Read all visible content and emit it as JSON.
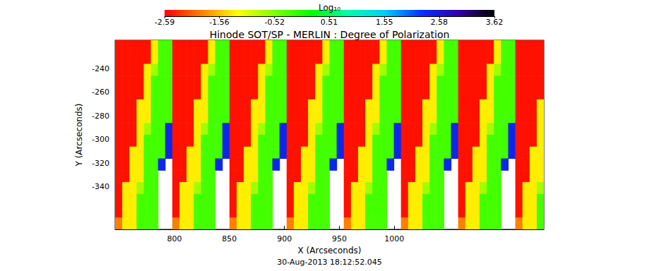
{
  "chart_data": {
    "type": "heatmap",
    "title": "Hinode SOT/SP - MERLIN : Degree of Polarization",
    "subtitle": "30-Aug-2013 18:12:52.045",
    "x_label": "X (Arcseconds)",
    "y_label": "Y (Arcseconds)",
    "xlim": [
      746,
      1136
    ],
    "ylim": [
      -376,
      -216
    ],
    "xticks": [
      800,
      850,
      900,
      950,
      1000
    ],
    "yticks": [
      -340,
      -320,
      -300,
      -280,
      -260,
      -240
    ],
    "grid": false,
    "cells": {
      "x": [
        749.25,
        755.75,
        762.25,
        768.75,
        775.25,
        781.75,
        788.25,
        794.75,
        801.25,
        807.75,
        814.25,
        820.75,
        827.25,
        833.75,
        840.25,
        846.75,
        853.25,
        859.75,
        866.25,
        872.75,
        879.25,
        885.75,
        892.25,
        898.75,
        905.25,
        911.75,
        918.25,
        924.75,
        931.25,
        937.75,
        944.25,
        950.75,
        957.25,
        963.75,
        970.25,
        976.75,
        983.25,
        989.75,
        996.25,
        1002.75,
        1009.25,
        1015.75,
        1022.25,
        1028.75,
        1035.25,
        1041.75,
        1048.25,
        1054.75,
        1061.25,
        1067.75,
        1074.25,
        1080.75,
        1087.25,
        1093.75,
        1100.25,
        1106.75,
        1113.25,
        1119.75,
        1126.25,
        1132.75
      ],
      "y": [
        -221,
        -231,
        -241,
        -251,
        -261,
        -271,
        -281,
        -291,
        -301,
        -311,
        -321,
        -331,
        -341,
        -351,
        -361,
        -371
      ],
      "values": [
        [
          -2.5,
          -2.5,
          -2.5,
          -2.5,
          -2.5,
          -1.3,
          -0.2,
          -0.2,
          -2.5,
          -2.5,
          -2.5,
          -2.5,
          -2.5,
          -1.3,
          -0.2,
          -0.2,
          -2.5,
          -2.5,
          -2.5,
          -2.5,
          -2.5,
          -1.3,
          -0.2,
          -0.2,
          -2.5,
          -2.5,
          -2.5,
          -2.5,
          -2.5,
          -1.3,
          -0.2,
          -0.2,
          -2.5,
          -2.5,
          -2.5,
          -2.5,
          -2.5,
          -1.3,
          -0.2,
          -0.2,
          -2.5,
          -2.5,
          -2.5,
          -2.5,
          -2.5,
          -1.3,
          -0.2,
          -0.2,
          -2.5,
          -2.5,
          -2.5,
          -2.5,
          -2.5,
          -1.3,
          -0.2,
          -0.2,
          -2.5,
          -2.5,
          -2.5,
          -2.5
        ],
        [
          -2.5,
          -2.5,
          -2.5,
          -2.5,
          -2.5,
          -1.3,
          -0.2,
          -0.2,
          -2.5,
          -2.5,
          -2.5,
          -2.5,
          -2.5,
          -1.3,
          -0.2,
          -0.2,
          -2.5,
          -2.5,
          -2.5,
          -2.5,
          -2.5,
          -1.3,
          -0.2,
          -0.2,
          -2.5,
          -2.5,
          -2.5,
          -2.5,
          -2.5,
          -1.3,
          -0.2,
          -0.2,
          -2.5,
          -2.5,
          -2.5,
          -2.5,
          -2.5,
          -1.3,
          -0.2,
          -0.2,
          -2.5,
          -2.5,
          -2.5,
          -2.5,
          -2.5,
          -1.3,
          -0.2,
          -0.2,
          -2.5,
          -2.5,
          -2.5,
          -2.5,
          -2.5,
          -1.3,
          -0.2,
          -0.2,
          -2.5,
          -2.5,
          -2.5,
          -2.5
        ],
        [
          -2.5,
          -2.5,
          -2.5,
          -2.5,
          -1.3,
          -0.7,
          -0.2,
          -0.2,
          -2.5,
          -2.5,
          -2.5,
          -2.5,
          -1.3,
          -0.7,
          -0.2,
          -0.2,
          -2.5,
          -2.5,
          -2.5,
          -2.5,
          -1.3,
          -0.7,
          -0.2,
          -0.2,
          -2.5,
          -2.5,
          -2.5,
          -2.5,
          -1.3,
          -0.7,
          -0.2,
          -0.2,
          -2.5,
          -2.5,
          -2.5,
          -2.5,
          -1.3,
          -0.7,
          -0.2,
          -0.2,
          -2.5,
          -2.5,
          -2.5,
          -2.5,
          -1.3,
          -0.7,
          -0.2,
          -0.2,
          -2.5,
          -2.5,
          -2.5,
          -2.5,
          -1.3,
          -0.7,
          -0.2,
          -0.2,
          -2.5,
          -2.5,
          -2.5,
          -2.5
        ],
        [
          -2.5,
          -2.5,
          -2.5,
          -2.5,
          -1.3,
          -0.2,
          -0.2,
          -0.2,
          -2.5,
          -2.5,
          -2.5,
          -2.5,
          -1.3,
          -0.2,
          -0.2,
          -0.2,
          -2.5,
          -2.5,
          -2.5,
          -2.5,
          -1.3,
          -0.2,
          -0.2,
          -0.2,
          -2.5,
          -2.5,
          -2.5,
          -2.5,
          -1.3,
          -0.2,
          -0.2,
          -0.2,
          -2.5,
          -2.5,
          -2.5,
          -2.5,
          -1.3,
          -0.2,
          -0.2,
          -0.2,
          -2.5,
          -2.5,
          -2.5,
          -2.5,
          -1.3,
          -0.2,
          -0.2,
          -0.2,
          -2.5,
          -2.5,
          -2.5,
          -2.5,
          -1.3,
          -0.2,
          -0.2,
          -0.2,
          -2.5,
          -2.5,
          -2.5,
          -2.5
        ],
        [
          -2.5,
          -2.5,
          -2.5,
          -2.5,
          -1.3,
          -0.2,
          -0.2,
          -0.2,
          -2.5,
          -2.5,
          -2.5,
          -2.5,
          -1.3,
          -0.2,
          -0.2,
          -0.2,
          -2.5,
          -2.5,
          -2.5,
          -2.5,
          -1.3,
          -0.2,
          -0.2,
          -0.2,
          -2.5,
          -2.5,
          -2.5,
          -2.5,
          -1.3,
          -0.2,
          -0.2,
          -0.2,
          -2.5,
          -2.5,
          -2.5,
          -2.5,
          -1.3,
          -0.2,
          -0.2,
          -0.2,
          -2.5,
          -2.5,
          -2.5,
          -2.5,
          -1.3,
          -0.2,
          -0.2,
          -0.2,
          -2.5,
          -2.5,
          -2.5,
          -2.5,
          -1.3,
          -0.2,
          -0.2,
          -0.2,
          -2.5,
          -2.5,
          -2.5,
          -2.5
        ],
        [
          -2.5,
          -2.5,
          -2.5,
          -1.3,
          -1.3,
          -0.2,
          -0.2,
          -0.2,
          -2.5,
          -2.5,
          -2.5,
          -1.3,
          -1.3,
          -0.2,
          -0.2,
          -0.2,
          -2.5,
          -2.5,
          -2.5,
          -1.3,
          -1.3,
          -0.2,
          -0.2,
          -0.2,
          -2.5,
          -2.5,
          -2.5,
          -1.3,
          -1.3,
          -0.2,
          -0.2,
          -0.2,
          -2.5,
          -2.5,
          -2.5,
          -1.3,
          -1.3,
          -0.2,
          -0.2,
          -0.2,
          -2.5,
          -2.5,
          -2.5,
          -1.3,
          -1.3,
          -0.2,
          -0.2,
          -0.2,
          -2.5,
          -2.5,
          -2.5,
          -1.3,
          -1.3,
          -0.2,
          -0.2,
          -0.2,
          -2.5,
          -2.5,
          -2.5,
          -1.3
        ],
        [
          -2.5,
          -2.5,
          -2.5,
          -1.3,
          -1.3,
          -0.2,
          -0.2,
          -0.2,
          -2.5,
          -2.5,
          -2.5,
          -1.3,
          -1.3,
          -0.2,
          -0.2,
          -0.2,
          -2.5,
          -2.5,
          -2.5,
          -1.3,
          -1.3,
          -0.2,
          -0.2,
          -0.2,
          -2.5,
          -2.5,
          -2.5,
          -1.3,
          -1.3,
          -0.2,
          -0.2,
          -0.2,
          -2.5,
          -2.5,
          -2.5,
          -1.3,
          -1.3,
          -0.2,
          -0.2,
          -0.2,
          -2.5,
          -2.5,
          -2.5,
          -1.3,
          -1.3,
          -0.2,
          -0.2,
          -0.2,
          -2.5,
          -2.5,
          -2.5,
          -1.3,
          -1.3,
          -0.2,
          -0.2,
          -0.2,
          -2.5,
          -2.5,
          -2.5,
          -1.3
        ],
        [
          -2.5,
          -2.5,
          -2.5,
          -1.3,
          -0.7,
          -0.2,
          -0.2,
          2.4,
          -2.5,
          -2.5,
          -2.5,
          -1.3,
          -0.7,
          -0.2,
          -0.2,
          2.4,
          -2.5,
          -2.5,
          -2.5,
          -1.3,
          -0.7,
          -0.2,
          -0.2,
          2.4,
          -2.5,
          -2.5,
          -2.5,
          -1.3,
          -0.7,
          -0.2,
          -0.2,
          2.4,
          -2.5,
          -2.5,
          -2.5,
          -1.3,
          -0.7,
          -0.2,
          -0.2,
          2.4,
          -2.5,
          -2.5,
          -2.5,
          -1.3,
          -0.7,
          -0.2,
          -0.2,
          2.4,
          -2.5,
          -2.5,
          -2.5,
          -1.3,
          -0.7,
          -0.2,
          -0.2,
          2.4,
          -2.5,
          -2.5,
          -2.5,
          -1.3
        ],
        [
          -2.5,
          -2.5,
          -2.5,
          -1.3,
          -0.2,
          -0.2,
          -0.2,
          2.4,
          -2.5,
          -2.5,
          -2.5,
          -1.3,
          -0.2,
          -0.2,
          -0.2,
          2.4,
          -2.5,
          -2.5,
          -2.5,
          -1.3,
          -0.2,
          -0.2,
          -0.2,
          2.4,
          -2.5,
          -2.5,
          -2.5,
          -1.3,
          -0.2,
          -0.2,
          -0.2,
          2.4,
          -2.5,
          -2.5,
          -2.5,
          -1.3,
          -0.2,
          -0.2,
          -0.2,
          2.4,
          -2.5,
          -2.5,
          -2.5,
          -1.3,
          -0.2,
          -0.2,
          -0.2,
          2.4,
          -2.5,
          -2.5,
          -2.5,
          -1.3,
          -0.2,
          -0.2,
          -0.2,
          2.4,
          -2.5,
          -2.5,
          -2.5,
          -1.3
        ],
        [
          -2.5,
          -2.5,
          -1.3,
          -1.3,
          -0.2,
          -0.2,
          -0.2,
          2.4,
          -2.5,
          -2.5,
          -1.3,
          -1.3,
          -0.2,
          -0.2,
          -0.2,
          2.4,
          -2.5,
          -2.5,
          -1.3,
          -1.3,
          -0.2,
          -0.2,
          -0.2,
          2.4,
          -2.5,
          -2.5,
          -1.3,
          -1.3,
          -0.2,
          -0.2,
          -0.2,
          2.4,
          -2.5,
          -2.5,
          -1.3,
          -1.3,
          -0.2,
          -0.2,
          -0.2,
          2.4,
          -2.5,
          -2.5,
          -1.3,
          -1.3,
          -0.2,
          -0.2,
          -0.2,
          2.4,
          -2.5,
          -2.5,
          -1.3,
          -1.3,
          -0.2,
          -0.2,
          -0.2,
          2.4,
          -2.5,
          -2.5,
          -1.3,
          -1.3
        ],
        [
          -2.5,
          -2.5,
          -1.3,
          -1.3,
          -0.2,
          -0.2,
          2.4,
          null,
          -2.5,
          -2.5,
          -1.3,
          -1.3,
          -0.2,
          -0.2,
          2.4,
          null,
          -2.5,
          -2.5,
          -1.3,
          -1.3,
          -0.2,
          -0.2,
          2.4,
          null,
          -2.5,
          -2.5,
          -1.3,
          -1.3,
          -0.2,
          -0.2,
          2.4,
          null,
          -2.5,
          -2.5,
          -1.3,
          -1.3,
          -0.2,
          -0.2,
          2.4,
          null,
          -2.5,
          -2.5,
          -1.3,
          -1.3,
          -0.2,
          -0.2,
          2.4,
          null,
          -2.5,
          -2.5,
          -1.3,
          -1.3,
          -0.2,
          -0.2,
          2.4,
          null,
          -2.5,
          -2.5,
          -1.3,
          -1.3
        ],
        [
          -2.5,
          -2.5,
          -1.3,
          -1.3,
          -0.2,
          -0.2,
          null,
          null,
          -2.5,
          -2.5,
          -1.3,
          -1.3,
          -0.2,
          -0.2,
          null,
          null,
          -2.5,
          -2.5,
          -1.3,
          -1.3,
          -0.2,
          -0.2,
          null,
          null,
          -2.5,
          -2.5,
          -1.3,
          -1.3,
          -0.2,
          -0.2,
          null,
          null,
          -2.5,
          -2.5,
          -1.3,
          -1.3,
          -0.2,
          -0.2,
          null,
          null,
          -2.5,
          -2.5,
          -1.3,
          -1.3,
          -0.2,
          -0.2,
          null,
          null,
          -2.5,
          -2.5,
          -1.3,
          -1.3,
          -0.2,
          -0.2,
          null,
          null,
          -2.5,
          -2.5,
          -1.3,
          -1.3
        ],
        [
          -2.5,
          -1.3,
          -1.3,
          -0.7,
          -0.2,
          -0.2,
          null,
          null,
          -2.5,
          -1.3,
          -1.3,
          -0.7,
          -0.2,
          -0.2,
          null,
          null,
          -2.5,
          -1.3,
          -1.3,
          -0.7,
          -0.2,
          -0.2,
          null,
          null,
          -2.5,
          -1.3,
          -1.3,
          -0.7,
          -0.2,
          -0.2,
          null,
          null,
          -2.5,
          -1.3,
          -1.3,
          -0.7,
          -0.2,
          -0.2,
          null,
          null,
          -2.5,
          -1.3,
          -1.3,
          -0.7,
          -0.2,
          -0.2,
          null,
          null,
          -2.5,
          -1.3,
          -1.3,
          -0.7,
          -0.2,
          -0.2,
          null,
          null,
          -2.5,
          -1.3,
          -1.3,
          -0.7
        ],
        [
          -2.5,
          -1.3,
          -1.3,
          -0.2,
          -0.2,
          -0.2,
          null,
          null,
          -2.5,
          -1.3,
          -1.3,
          -0.2,
          -0.2,
          -0.2,
          null,
          null,
          -2.5,
          -1.3,
          -1.3,
          -0.2,
          -0.2,
          -0.2,
          null,
          null,
          -2.5,
          -1.3,
          -1.3,
          -0.2,
          -0.2,
          -0.2,
          null,
          null,
          -2.5,
          -1.3,
          -1.3,
          -0.2,
          -0.2,
          -0.2,
          null,
          null,
          -2.5,
          -1.3,
          -1.3,
          -0.2,
          -0.2,
          -0.2,
          null,
          null,
          -2.5,
          -1.3,
          -1.3,
          -0.2,
          -0.2,
          -0.2,
          null,
          null,
          -2.5,
          -1.3,
          -1.3,
          -0.2
        ],
        [
          -2.5,
          -1.3,
          -1.3,
          -0.2,
          -0.2,
          -0.2,
          null,
          null,
          -2.5,
          -1.3,
          -1.3,
          -0.2,
          -0.2,
          -0.2,
          null,
          null,
          -2.5,
          -1.3,
          -1.3,
          -0.2,
          -0.2,
          -0.2,
          null,
          null,
          -2.5,
          -1.3,
          -1.3,
          -0.2,
          -0.2,
          -0.2,
          null,
          null,
          -2.5,
          -1.3,
          -1.3,
          -0.2,
          -0.2,
          -0.2,
          null,
          null,
          -2.5,
          -1.3,
          -1.3,
          -0.2,
          -0.2,
          -0.2,
          null,
          null,
          -2.5,
          -1.3,
          -1.3,
          -0.2,
          -0.2,
          -0.2,
          null,
          null,
          -2.5,
          -1.3,
          -1.3,
          -0.2
        ],
        [
          -1.9,
          -1.3,
          -1.3,
          -0.2,
          -0.2,
          -0.2,
          null,
          null,
          -1.9,
          -1.3,
          -1.3,
          -0.2,
          -0.2,
          -0.2,
          null,
          null,
          -1.9,
          -1.3,
          -1.3,
          -0.2,
          -0.2,
          -0.2,
          null,
          null,
          -1.9,
          -1.3,
          -1.3,
          -0.2,
          -0.2,
          -0.2,
          null,
          null,
          -1.9,
          -1.3,
          -1.3,
          -0.2,
          -0.2,
          -0.2,
          null,
          null,
          -1.9,
          -1.3,
          -1.3,
          -0.2,
          -0.2,
          -0.2,
          null,
          null,
          -1.9,
          -1.3,
          -1.3,
          -0.2,
          -0.2,
          -0.2,
          null,
          null,
          -1.9,
          -1.3,
          -1.3,
          -0.2
        ]
      ]
    },
    "colorbar": {
      "label": "Log₁₀",
      "range": [
        -2.59,
        3.62
      ],
      "ticks": [
        -2.59,
        -1.56,
        -0.52,
        0.51,
        1.55,
        2.58,
        3.62
      ]
    }
  }
}
